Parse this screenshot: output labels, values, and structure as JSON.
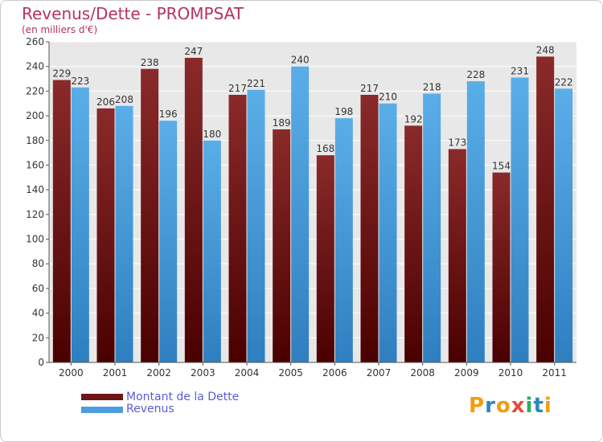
{
  "title": "Revenus/Dette - PROMPSAT",
  "subtitle": "(en milliers d'€)",
  "legend": [
    {
      "label": "Montant de la Dette",
      "color": "#7b1b1b"
    },
    {
      "label": "Revenus",
      "color": "#4d9ee0"
    }
  ],
  "logo": {
    "text": "Proxiti",
    "letters": [
      "P",
      "r",
      "o",
      "x",
      "i",
      "t",
      "i"
    ],
    "colors": [
      "#f39c12",
      "#2e86c1",
      "#f39c12",
      "#e74c3c",
      "#27ae60",
      "#2e86c1",
      "#f39c12"
    ]
  },
  "chart_data": {
    "type": "bar",
    "categories": [
      "2000",
      "2001",
      "2002",
      "2003",
      "2004",
      "2005",
      "2006",
      "2007",
      "2008",
      "2009",
      "2010",
      "2011"
    ],
    "series": [
      {
        "name": "Montant de la Dette",
        "values": [
          229,
          206,
          238,
          247,
          217,
          189,
          168,
          217,
          192,
          173,
          154,
          248
        ],
        "color": "#7b1b1b"
      },
      {
        "name": "Revenus",
        "values": [
          223,
          208,
          196,
          180,
          221,
          240,
          198,
          210,
          218,
          228,
          231,
          222
        ],
        "color": "#4d9ee0"
      }
    ],
    "ylim": [
      0,
      260
    ],
    "yticks": [
      0,
      20,
      40,
      60,
      80,
      100,
      120,
      140,
      160,
      180,
      200,
      220,
      240,
      260
    ],
    "grid": true
  }
}
